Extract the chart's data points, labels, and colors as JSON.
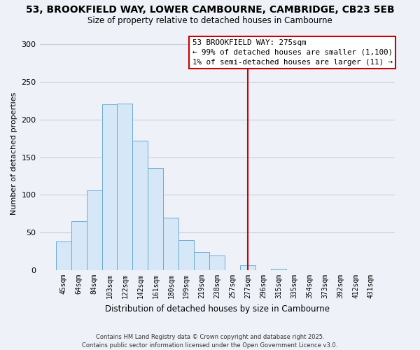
{
  "title": "53, BROOKFIELD WAY, LOWER CAMBOURNE, CAMBRIDGE, CB23 5EB",
  "subtitle": "Size of property relative to detached houses in Cambourne",
  "xlabel": "Distribution of detached houses by size in Cambourne",
  "ylabel": "Number of detached properties",
  "categories": [
    "45sqm",
    "64sqm",
    "84sqm",
    "103sqm",
    "122sqm",
    "142sqm",
    "161sqm",
    "180sqm",
    "199sqm",
    "219sqm",
    "238sqm",
    "257sqm",
    "277sqm",
    "296sqm",
    "315sqm",
    "335sqm",
    "354sqm",
    "373sqm",
    "392sqm",
    "412sqm",
    "431sqm"
  ],
  "values": [
    38,
    65,
    106,
    220,
    221,
    172,
    136,
    70,
    40,
    24,
    20,
    0,
    7,
    0,
    2,
    0,
    0,
    0,
    0,
    0,
    0
  ],
  "bar_color": "#d6e8f7",
  "bar_edge_color": "#6aaad4",
  "vline_x": 12,
  "vline_color": "#cc0000",
  "ylim": [
    0,
    310
  ],
  "yticks": [
    0,
    50,
    100,
    150,
    200,
    250,
    300
  ],
  "annotation_title": "53 BROOKFIELD WAY: 275sqm",
  "annotation_line1": "← 99% of detached houses are smaller (1,100)",
  "annotation_line2": "1% of semi-detached houses are larger (11) →",
  "footer1": "Contains HM Land Registry data © Crown copyright and database right 2025.",
  "footer2": "Contains public sector information licensed under the Open Government Licence v3.0.",
  "background_color": "#eef2f8",
  "plot_bg_color": "#eef2f8",
  "grid_color": "#c8d0dc"
}
